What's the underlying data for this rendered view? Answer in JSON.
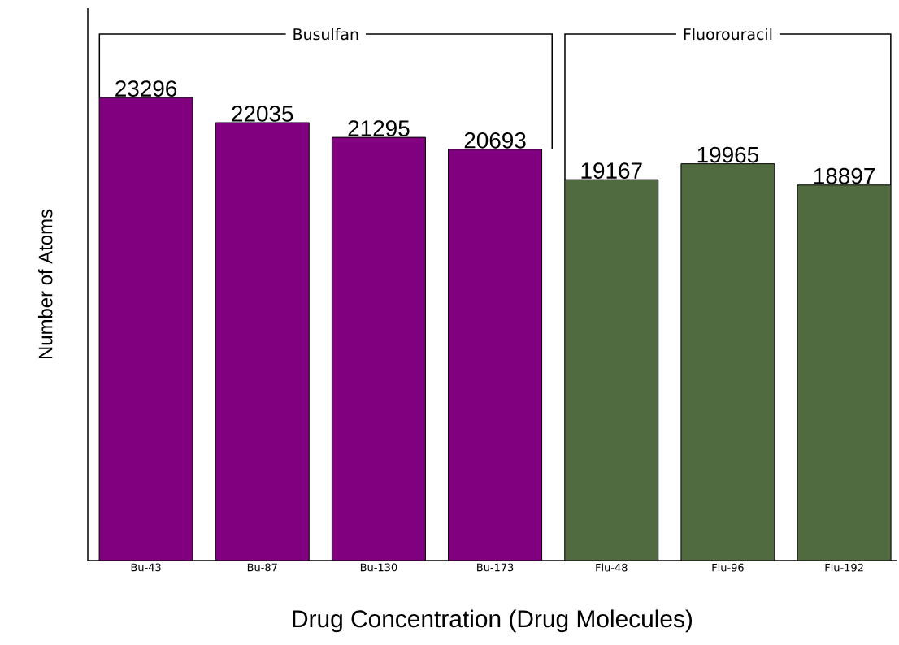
{
  "chart_data": {
    "type": "bar",
    "xlabel": "Drug Concentration (Drug Molecules)",
    "ylabel": "Number of Atoms",
    "categories": [
      "Bu-43",
      "Bu-87",
      "Bu-130",
      "Bu-173",
      "Flu-48",
      "Flu-96",
      "Flu-192"
    ],
    "values": [
      23296,
      22035,
      21295,
      20693,
      19167,
      19965,
      18897
    ],
    "colors": [
      "#800080",
      "#800080",
      "#800080",
      "#800080",
      "#4f6b3f",
      "#4f6b3f",
      "#4f6b3f"
    ],
    "ylim": [
      0,
      27800
    ],
    "tick_labels": "x",
    "data_labels": true,
    "annotations": [
      "Busulfan",
      "Fluorouracil"
    ]
  }
}
